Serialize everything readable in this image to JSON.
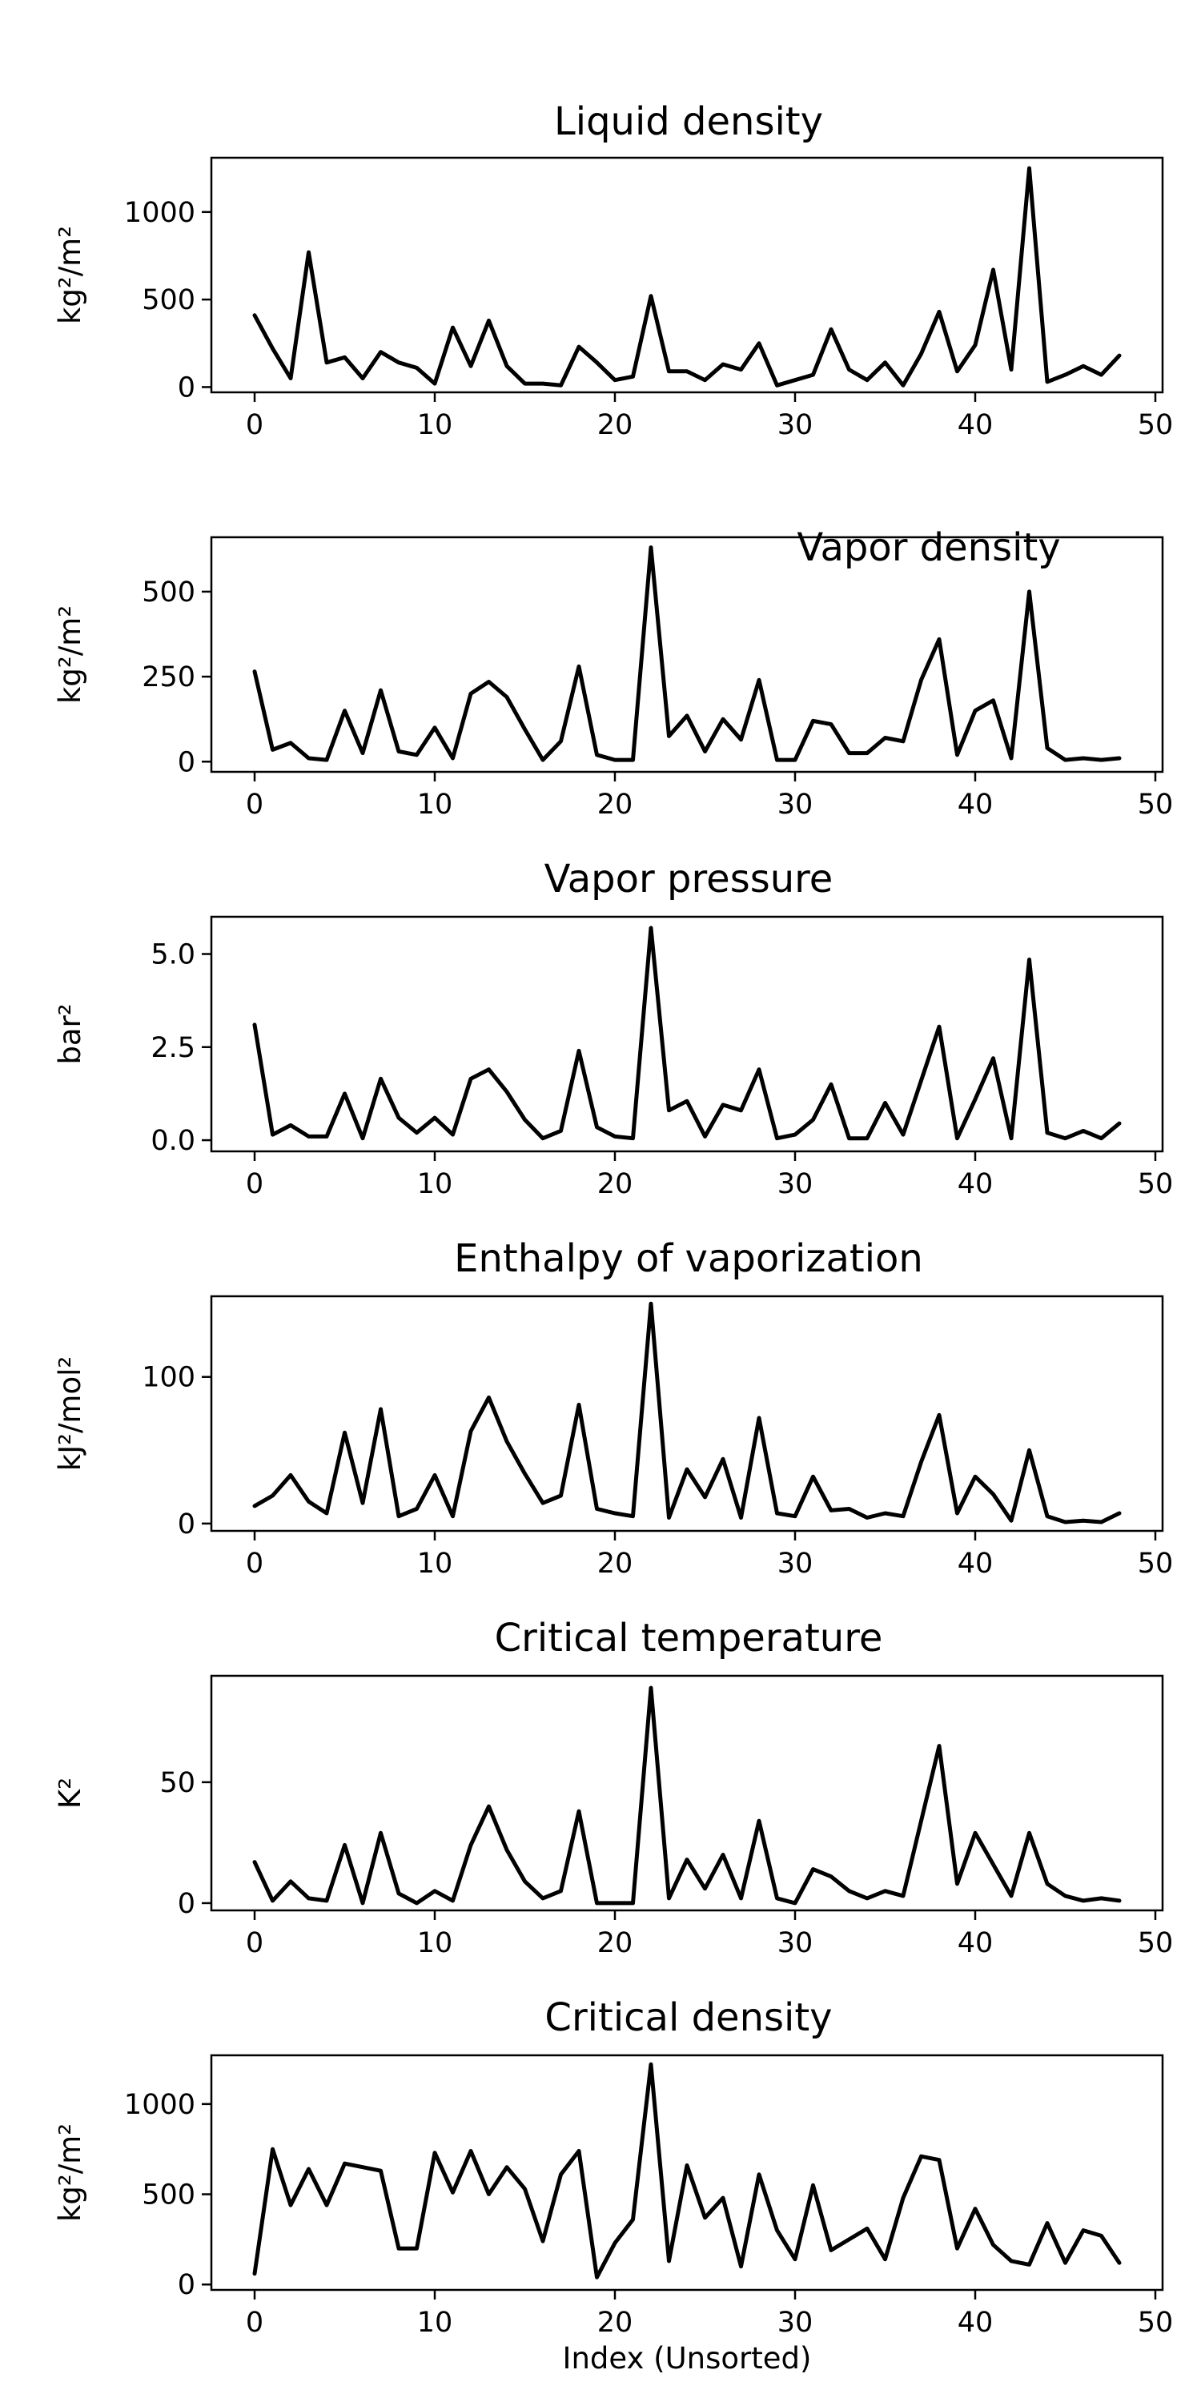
{
  "chart_data": [
    {
      "type": "line",
      "title": "Liquid density",
      "ylabel": "kg²/m²",
      "xlabel": "",
      "xlim": [
        -2.4,
        50.4
      ],
      "ylim": [
        -30,
        1310
      ],
      "xticks": [
        0,
        10,
        20,
        30,
        40,
        50
      ],
      "yticks": [
        0,
        500,
        1000
      ],
      "grid": false,
      "series": [
        {
          "x": [
            0,
            1,
            2,
            3,
            4,
            5,
            6,
            7,
            8,
            9,
            10,
            11,
            12,
            13,
            14,
            15,
            16,
            17,
            18,
            19,
            20,
            21,
            22,
            23,
            24,
            25,
            26,
            27,
            28,
            29,
            30,
            31,
            32,
            33,
            34,
            35,
            36,
            37,
            38,
            39,
            40,
            41,
            42,
            43,
            44,
            45,
            46,
            47,
            48
          ],
          "values": [
            410,
            220,
            50,
            770,
            140,
            170,
            50,
            200,
            140,
            110,
            20,
            340,
            120,
            380,
            120,
            20,
            20,
            10,
            230,
            140,
            40,
            60,
            520,
            90,
            90,
            40,
            130,
            100,
            250,
            10,
            40,
            70,
            330,
            100,
            40,
            140,
            10,
            190,
            430,
            90,
            240,
            670,
            100,
            1250,
            30,
            70,
            120,
            70,
            180
          ]
        }
      ]
    },
    {
      "type": "line",
      "title": "Vapor density",
      "ylabel": "kg²/m²",
      "xlabel": "",
      "xlim": [
        -2.4,
        50.4
      ],
      "ylim": [
        -30,
        660
      ],
      "xticks": [
        0,
        10,
        20,
        30,
        40,
        50
      ],
      "yticks": [
        0,
        250,
        500
      ],
      "grid": false,
      "series": [
        {
          "x": [
            0,
            1,
            2,
            3,
            4,
            5,
            6,
            7,
            8,
            9,
            10,
            11,
            12,
            13,
            14,
            15,
            16,
            17,
            18,
            19,
            20,
            21,
            22,
            23,
            24,
            25,
            26,
            27,
            28,
            29,
            30,
            31,
            32,
            33,
            34,
            35,
            36,
            37,
            38,
            39,
            40,
            41,
            42,
            43,
            44,
            45,
            46,
            47,
            48
          ],
          "values": [
            265,
            35,
            55,
            10,
            5,
            150,
            25,
            210,
            30,
            20,
            100,
            10,
            200,
            235,
            190,
            95,
            5,
            60,
            280,
            20,
            5,
            5,
            630,
            75,
            135,
            30,
            125,
            65,
            240,
            5,
            5,
            120,
            110,
            25,
            25,
            70,
            60,
            240,
            360,
            20,
            150,
            180,
            10,
            500,
            40,
            5,
            10,
            5,
            10
          ]
        }
      ]
    },
    {
      "type": "line",
      "title": "Vapor pressure",
      "ylabel": "bar²",
      "xlabel": "",
      "xlim": [
        -2.4,
        50.4
      ],
      "ylim": [
        -0.3,
        6.0
      ],
      "xticks": [
        0,
        10,
        20,
        30,
        40,
        50
      ],
      "yticks": [
        0.0,
        2.5,
        5.0
      ],
      "ytick_labels": [
        "0.0",
        "2.5",
        "5.0"
      ],
      "grid": false,
      "series": [
        {
          "x": [
            0,
            1,
            2,
            3,
            4,
            5,
            6,
            7,
            8,
            9,
            10,
            11,
            12,
            13,
            14,
            15,
            16,
            17,
            18,
            19,
            20,
            21,
            22,
            23,
            24,
            25,
            26,
            27,
            28,
            29,
            30,
            31,
            32,
            33,
            34,
            35,
            36,
            37,
            38,
            39,
            40,
            41,
            42,
            43,
            44,
            45,
            46,
            47,
            48
          ],
          "values": [
            3.1,
            0.15,
            0.4,
            0.1,
            0.1,
            1.25,
            0.05,
            1.65,
            0.6,
            0.2,
            0.6,
            0.15,
            1.65,
            1.9,
            1.3,
            0.55,
            0.05,
            0.25,
            2.4,
            0.35,
            0.1,
            0.05,
            5.7,
            0.8,
            1.05,
            0.1,
            0.95,
            0.8,
            1.9,
            0.05,
            0.15,
            0.55,
            1.5,
            0.05,
            0.05,
            1.0,
            0.15,
            1.6,
            3.05,
            0.05,
            1.1,
            2.2,
            0.05,
            4.85,
            0.2,
            0.05,
            0.25,
            0.05,
            0.45
          ]
        }
      ]
    },
    {
      "type": "line",
      "title": "Enthalpy of vaporization",
      "ylabel": "kJ²/mol²",
      "xlabel": "",
      "xlim": [
        -2.4,
        50.4
      ],
      "ylim": [
        -5,
        155
      ],
      "xticks": [
        0,
        10,
        20,
        30,
        40,
        50
      ],
      "yticks": [
        0,
        100
      ],
      "grid": false,
      "series": [
        {
          "x": [
            0,
            1,
            2,
            3,
            4,
            5,
            6,
            7,
            8,
            9,
            10,
            11,
            12,
            13,
            14,
            15,
            16,
            17,
            18,
            19,
            20,
            21,
            22,
            23,
            24,
            25,
            26,
            27,
            28,
            29,
            30,
            31,
            32,
            33,
            34,
            35,
            36,
            37,
            38,
            39,
            40,
            41,
            42,
            43,
            44,
            45,
            46,
            47,
            48
          ],
          "values": [
            12,
            19,
            33,
            15,
            7,
            62,
            14,
            78,
            5,
            10,
            33,
            5,
            63,
            86,
            56,
            34,
            14,
            19,
            81,
            10,
            7,
            5,
            150,
            4,
            37,
            18,
            44,
            4,
            72,
            7,
            5,
            32,
            9,
            10,
            4,
            7,
            5,
            42,
            74,
            7,
            32,
            20,
            2,
            50,
            5,
            1,
            2,
            1,
            7
          ]
        }
      ]
    },
    {
      "type": "line",
      "title": "Critical temperature",
      "ylabel": "K²",
      "xlabel": "",
      "xlim": [
        -2.4,
        50.4
      ],
      "ylim": [
        -3,
        94
      ],
      "xticks": [
        0,
        10,
        20,
        30,
        40,
        50
      ],
      "yticks": [
        0,
        50
      ],
      "grid": false,
      "series": [
        {
          "x": [
            0,
            1,
            2,
            3,
            4,
            5,
            6,
            7,
            8,
            9,
            10,
            11,
            12,
            13,
            14,
            15,
            16,
            17,
            18,
            19,
            20,
            21,
            22,
            23,
            24,
            25,
            26,
            27,
            28,
            29,
            30,
            31,
            32,
            33,
            34,
            35,
            36,
            37,
            38,
            39,
            40,
            41,
            42,
            43,
            44,
            45,
            46,
            47,
            48
          ],
          "values": [
            17,
            1,
            9,
            2,
            1,
            24,
            0,
            29,
            4,
            0,
            5,
            1,
            24,
            40,
            22,
            9,
            2,
            5,
            38,
            0,
            0,
            0,
            89,
            2,
            18,
            6,
            20,
            2,
            34,
            2,
            0,
            14,
            11,
            5,
            2,
            5,
            3,
            34,
            65,
            8,
            29,
            16,
            3,
            29,
            8,
            3,
            1,
            2,
            1
          ]
        }
      ]
    },
    {
      "type": "line",
      "title": "Critical density",
      "ylabel": "kg²/m²",
      "xlabel": "Index (Unsorted)",
      "xlim": [
        -2.4,
        50.4
      ],
      "ylim": [
        -30,
        1270
      ],
      "xticks": [
        0,
        10,
        20,
        30,
        40,
        50
      ],
      "yticks": [
        0,
        500,
        1000
      ],
      "grid": false,
      "series": [
        {
          "x": [
            0,
            1,
            2,
            3,
            4,
            5,
            6,
            7,
            8,
            9,
            10,
            11,
            12,
            13,
            14,
            15,
            16,
            17,
            18,
            19,
            20,
            21,
            22,
            23,
            24,
            25,
            26,
            27,
            28,
            29,
            30,
            31,
            32,
            33,
            34,
            35,
            36,
            37,
            38,
            39,
            40,
            41,
            42,
            43,
            44,
            45,
            46,
            47,
            48
          ],
          "values": [
            60,
            750,
            440,
            640,
            440,
            670,
            650,
            630,
            200,
            200,
            730,
            510,
            740,
            500,
            650,
            530,
            240,
            610,
            740,
            40,
            230,
            360,
            1220,
            130,
            660,
            370,
            480,
            100,
            610,
            300,
            140,
            550,
            190,
            250,
            310,
            140,
            480,
            710,
            690,
            200,
            420,
            220,
            130,
            110,
            340,
            120,
            300,
            270,
            120
          ]
        }
      ]
    }
  ]
}
